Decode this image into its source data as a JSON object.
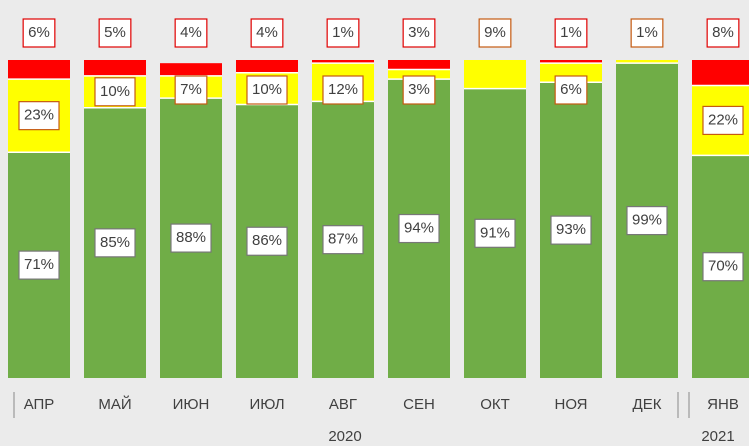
{
  "chart_data": {
    "type": "stacked_bar",
    "categories": [
      "АПР",
      "МАЙ",
      "ИЮН",
      "ИЮЛ",
      "АВГ",
      "СЕН",
      "ОКТ",
      "НОЯ",
      "ДЕК",
      "ЯНВ"
    ],
    "series": [
      {
        "color": "#70ad47",
        "values": [
          71,
          85,
          88,
          86,
          87,
          94,
          91,
          93,
          99,
          70
        ],
        "value_labels": [
          "71%",
          "85%",
          "88%",
          "86%",
          "87%",
          "94%",
          "91%",
          "93%",
          "99%",
          "70%"
        ]
      },
      {
        "color": "#ffff00",
        "values": [
          23,
          10,
          7,
          10,
          12,
          3,
          9,
          6,
          1,
          22
        ],
        "value_labels": [
          "23%",
          "10%",
          "7%",
          "10%",
          "12%",
          "3%",
          "9%",
          "6%",
          "1%",
          "22%"
        ]
      },
      {
        "color": "#ff0000",
        "values": [
          6,
          5,
          4,
          4,
          1,
          3,
          null,
          1,
          null,
          8
        ],
        "value_labels": [
          "6%",
          "5%",
          "4%",
          "4%",
          "1%",
          "3%",
          null,
          "1%",
          null,
          "8%"
        ]
      }
    ],
    "ylim": [
      0,
      100
    ],
    "annotations": [
      "2020",
      "2021"
    ]
  }
}
